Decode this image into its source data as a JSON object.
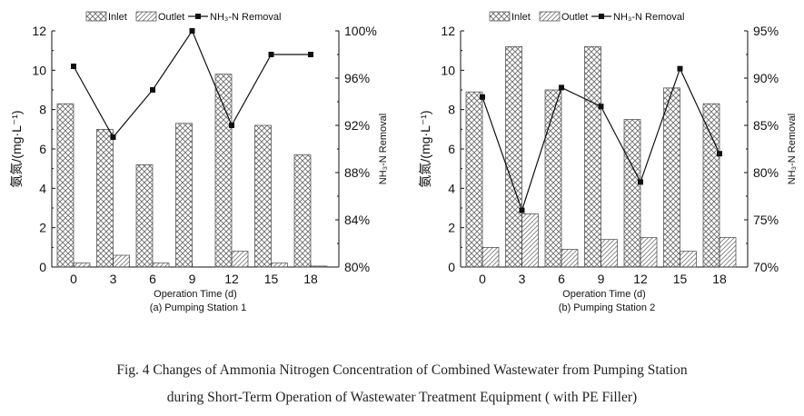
{
  "caption": {
    "line1": "Fig. 4    Changes of Ammonia Nitrogen Concentration of Combined Wastewater from Pumping Station",
    "line2": "during Short-Term Operation of Wastewater Treatment Equipment ( with PE Filler)"
  },
  "colors": {
    "axis": "#111111",
    "bar_stroke": "#444444",
    "line": "#111111",
    "hatch": "#666666"
  },
  "chart_data": [
    {
      "type": "bar+line",
      "subtitle": "(a) Pumping Station 1",
      "xlabel": "Operation Time (d)",
      "ylabel": "氨氮/(mg·L⁻¹)",
      "y2label": "NH₃-N Removal",
      "categories": [
        "0",
        "3",
        "6",
        "9",
        "12",
        "15",
        "18"
      ],
      "ylim": [
        0,
        12
      ],
      "yticks": [
        "0",
        "2",
        "4",
        "6",
        "8",
        "10",
        "12"
      ],
      "y2lim": [
        80,
        100
      ],
      "y2ticks": [
        "80%",
        "84%",
        "88%",
        "92%",
        "96%",
        "100%"
      ],
      "legend": [
        "Inlet",
        "Outlet",
        "NH₃-N Removal"
      ],
      "legend_position": "top",
      "series": [
        {
          "name": "Inlet",
          "kind": "bar",
          "pattern": "crosshatch",
          "values": [
            8.3,
            7.0,
            5.2,
            7.3,
            9.8,
            7.2,
            5.7
          ]
        },
        {
          "name": "Outlet",
          "kind": "bar",
          "pattern": "diagonal",
          "values": [
            0.2,
            0.6,
            0.2,
            0.0,
            0.8,
            0.2,
            0.05
          ]
        },
        {
          "name": "NH₃-N Removal",
          "kind": "line",
          "axis": "right",
          "values": [
            97,
            91,
            95,
            100,
            92,
            98,
            98
          ]
        }
      ]
    },
    {
      "type": "bar+line",
      "subtitle": "(b) Pumping Station 2",
      "xlabel": "Operation Time (d)",
      "ylabel": "氨氮/(mg·L⁻¹)",
      "y2label": "NH₃-N Removal",
      "categories": [
        "0",
        "3",
        "6",
        "9",
        "12",
        "15",
        "18"
      ],
      "ylim": [
        0,
        12
      ],
      "yticks": [
        "0",
        "2",
        "4",
        "6",
        "8",
        "10",
        "12"
      ],
      "y2lim": [
        70,
        95
      ],
      "y2ticks": [
        "70%",
        "75%",
        "80%",
        "85%",
        "90%",
        "95%"
      ],
      "legend": [
        "Inlet",
        "Outlet",
        "NH₃-N Removal"
      ],
      "legend_position": "top",
      "series": [
        {
          "name": "Inlet",
          "kind": "bar",
          "pattern": "crosshatch",
          "values": [
            8.9,
            11.2,
            9.0,
            11.2,
            7.5,
            9.1,
            8.3
          ]
        },
        {
          "name": "Outlet",
          "kind": "bar",
          "pattern": "diagonal",
          "values": [
            1.0,
            2.7,
            0.9,
            1.4,
            1.5,
            0.8,
            1.5
          ]
        },
        {
          "name": "NH₃-N Removal",
          "kind": "line",
          "axis": "right",
          "values": [
            88,
            76,
            89,
            87,
            79,
            91,
            82
          ]
        }
      ]
    }
  ]
}
